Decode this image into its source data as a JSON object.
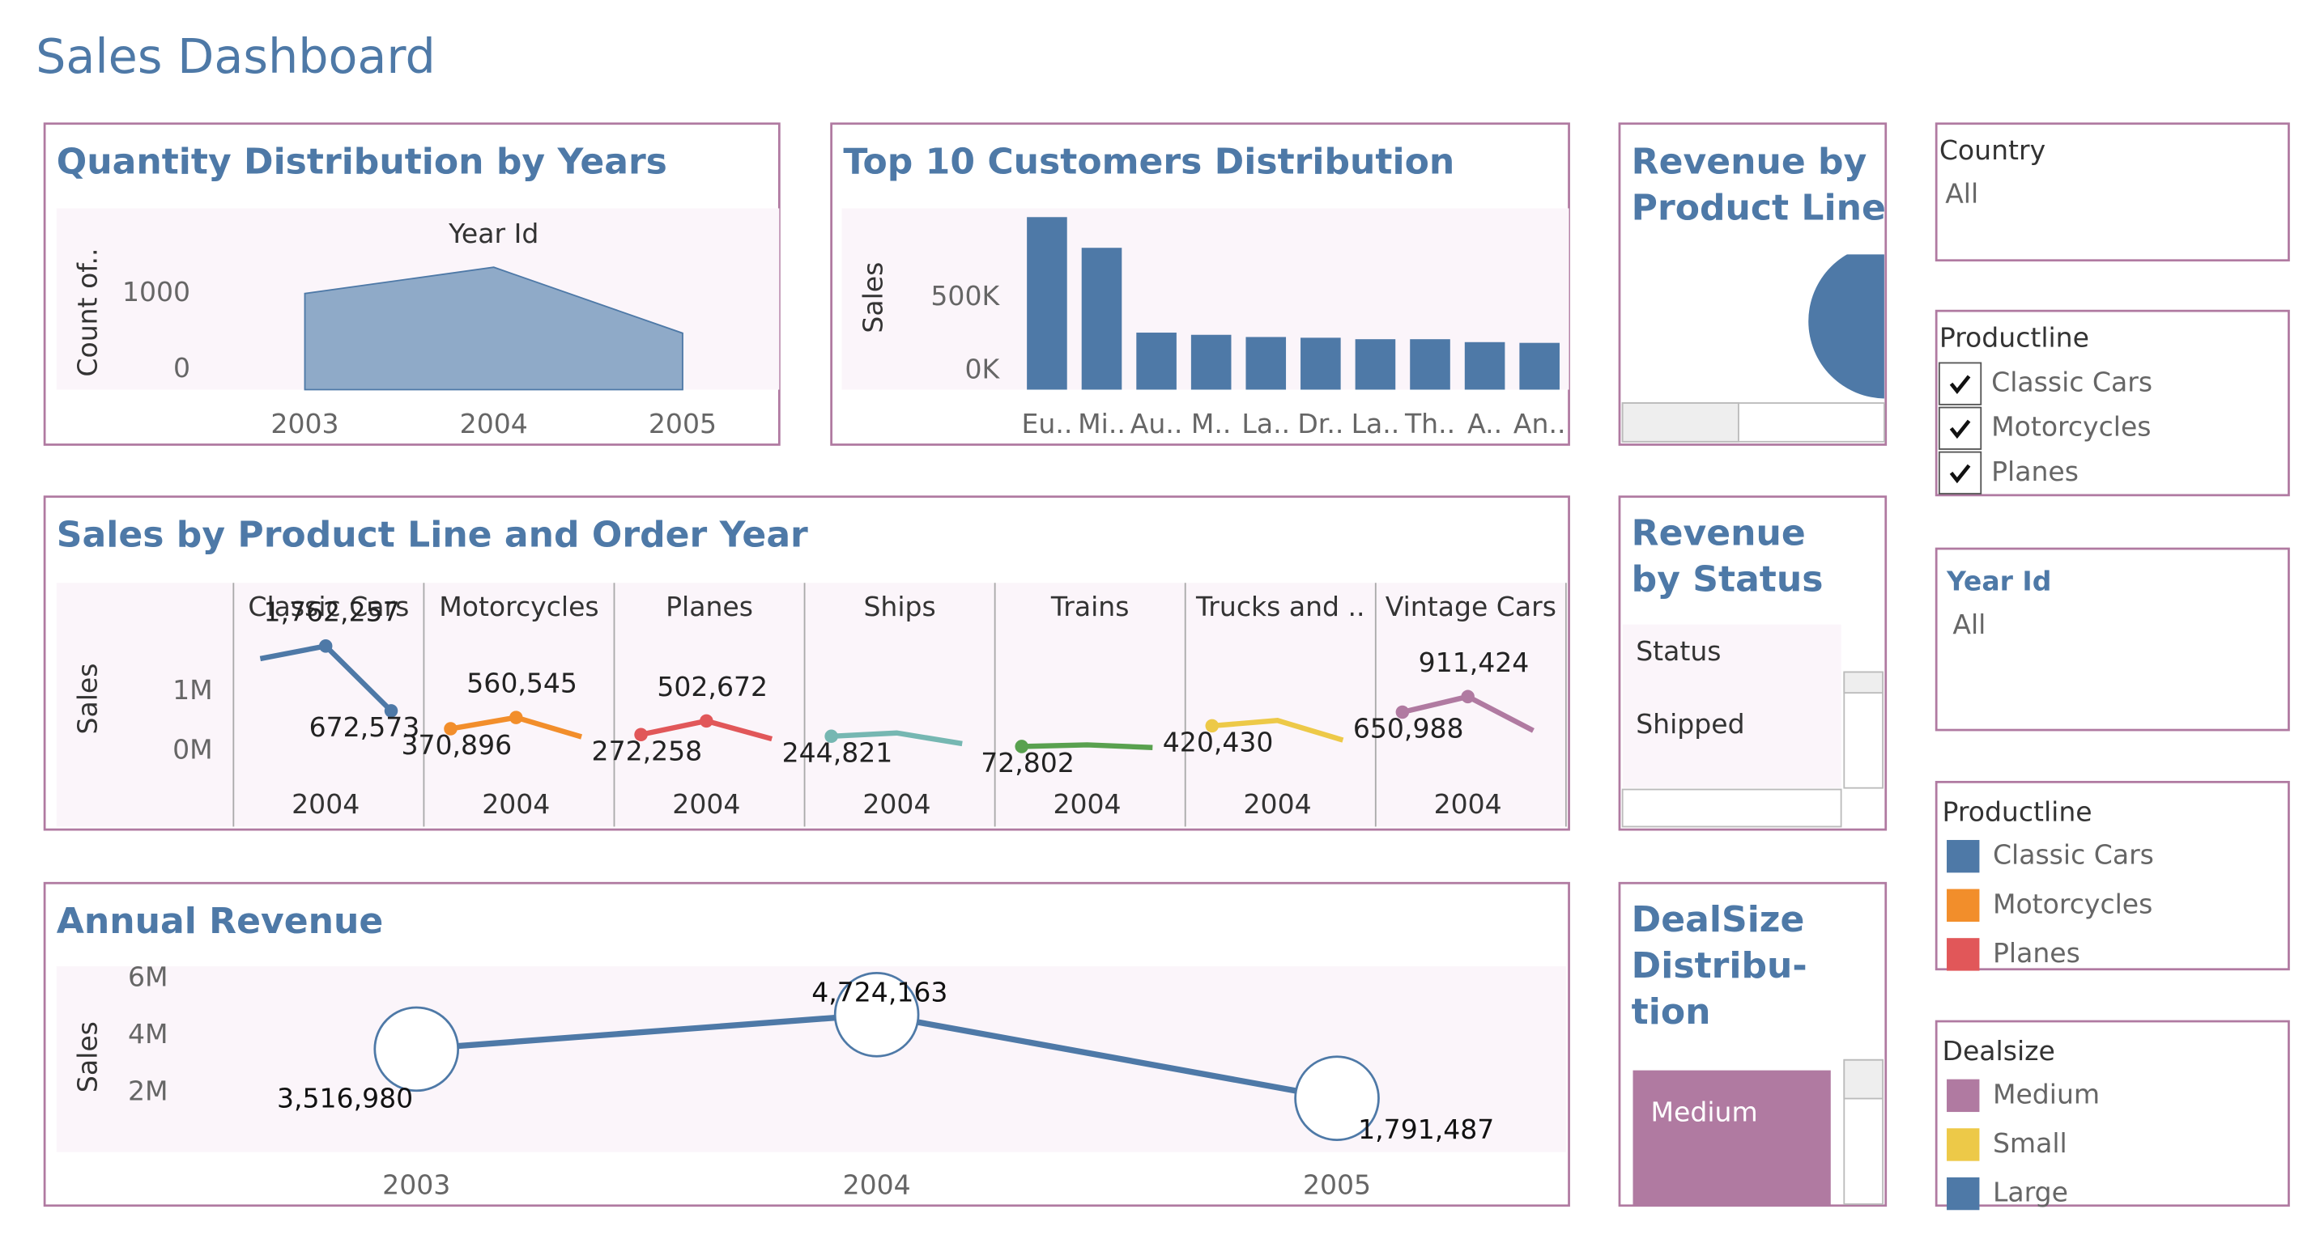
{
  "title": "Sales Dashboard",
  "chart_data": [
    {
      "type": "area",
      "title": "Quantity Distribution by Years",
      "x_label": "Year Id",
      "y_label": "Count of..",
      "categories": [
        "2003",
        "2004",
        "2005"
      ],
      "values": [
        1000,
        1345,
        478
      ],
      "color": "#8faac8",
      "ylim": [
        -265,
        2120
      ],
      "yticks": [
        0,
        1000
      ]
    },
    {
      "type": "bar",
      "title": "Top 10 Customers Distribution",
      "y_label": "Sales",
      "categories": [
        "Eu..",
        "Mi..",
        "Au..",
        "M..",
        "La..",
        "Dr..",
        "La..",
        "Th..",
        "A..",
        "An.."
      ],
      "values": [
        1050000,
        840000,
        260000,
        245000,
        230000,
        225000,
        215000,
        215000,
        195000,
        190000
      ],
      "color": "#4e79a7",
      "ylim": [
        -130000,
        1110000
      ],
      "yticks": [
        {
          "value": 0,
          "label": "0K"
        },
        {
          "value": 500000,
          "label": "500K"
        }
      ]
    },
    {
      "type": "panel-line",
      "title": "Sales by Product Line and Order Year",
      "y_label": "Sales",
      "categories": [
        null,
        "2004",
        null
      ],
      "ylim": [
        -1275000,
        2825000
      ],
      "yticks": [
        {
          "value": 0,
          "label": "0M"
        },
        {
          "value": 1000000,
          "label": "1M"
        }
      ],
      "series": [
        {
          "name": "Classic Cars",
          "color": "#4e79a7",
          "values": [
            1550000,
            1762257,
            672573
          ],
          "value_labels": [
            null,
            "1,762,257",
            "672,573"
          ]
        },
        {
          "name": "Motorcycles",
          "color": "#f28e2b",
          "values": [
            370896,
            560545,
            234947
          ],
          "value_labels": [
            "370,896",
            "560,545",
            null
          ]
        },
        {
          "name": "Planes",
          "color": "#e15759",
          "values": [
            272258,
            502672,
            200074
          ],
          "value_labels": [
            "272,258",
            "502,672",
            null
          ]
        },
        {
          "name": "Ships",
          "color": "#76b7b2",
          "values": [
            244821,
            300000,
            120000
          ],
          "value_labels": [
            "244,821",
            null,
            null
          ]
        },
        {
          "name": "Trains",
          "color": "#59a14f",
          "values": [
            72802,
            100000,
            55000
          ],
          "value_labels": [
            "72,802",
            null,
            null
          ]
        },
        {
          "name": "Trucks and ..",
          "color": "#edc948",
          "values": [
            420430,
            510000,
            180000
          ],
          "value_labels": [
            "420,430",
            null,
            null
          ]
        },
        {
          "name": "Vintage Cars",
          "color": "#b07aa1",
          "values": [
            650988,
            911424,
            340000
          ],
          "value_labels": [
            "650,988",
            "911,424",
            null
          ]
        }
      ]
    },
    {
      "type": "line",
      "title": "Annual Revenue",
      "y_label": "Sales",
      "categories": [
        "2003",
        "2004",
        "2005"
      ],
      "values": [
        3516980,
        4724163,
        1791487
      ],
      "value_labels": [
        "3,516,980",
        "4,724,163",
        "1,791,487"
      ],
      "color": "#4e79a7",
      "ylim": [
        -95000,
        6420000
      ],
      "yticks": [
        {
          "value": 2000000,
          "label": "2M"
        },
        {
          "value": 4000000,
          "label": "4M"
        },
        {
          "value": 6000000,
          "label": "6M"
        }
      ]
    }
  ],
  "side_panels": [
    {
      "title_lines": [
        "Revenue by",
        "Product Line"
      ]
    },
    {
      "title_lines": [
        "Revenue",
        "by Status"
      ],
      "header": "Status",
      "rows": [
        "Shipped"
      ]
    },
    {
      "title_lines": [
        "DealSize",
        "Distribu-",
        "tion"
      ],
      "cells": [
        {
          "name": "Medium",
          "color": "#b07aa1"
        }
      ]
    }
  ],
  "filters": [
    {
      "title": "Country",
      "value": "All"
    },
    {
      "title": "Productline",
      "options": [
        "Classic Cars",
        "Motorcycles",
        "Planes"
      ]
    },
    {
      "title": "Year Id",
      "value": "All"
    }
  ],
  "legends": [
    {
      "title": "Productline",
      "items": [
        {
          "name": "Classic Cars",
          "color": "#4e79a7"
        },
        {
          "name": "Motorcycles",
          "color": "#f28e2b"
        },
        {
          "name": "Planes",
          "color": "#e15759"
        }
      ]
    },
    {
      "title": "Dealsize",
      "items": [
        {
          "name": "Medium",
          "color": "#b07aa1"
        },
        {
          "name": "Small",
          "color": "#edc948"
        },
        {
          "name": "Large",
          "color": "#4e79a7"
        }
      ]
    }
  ]
}
